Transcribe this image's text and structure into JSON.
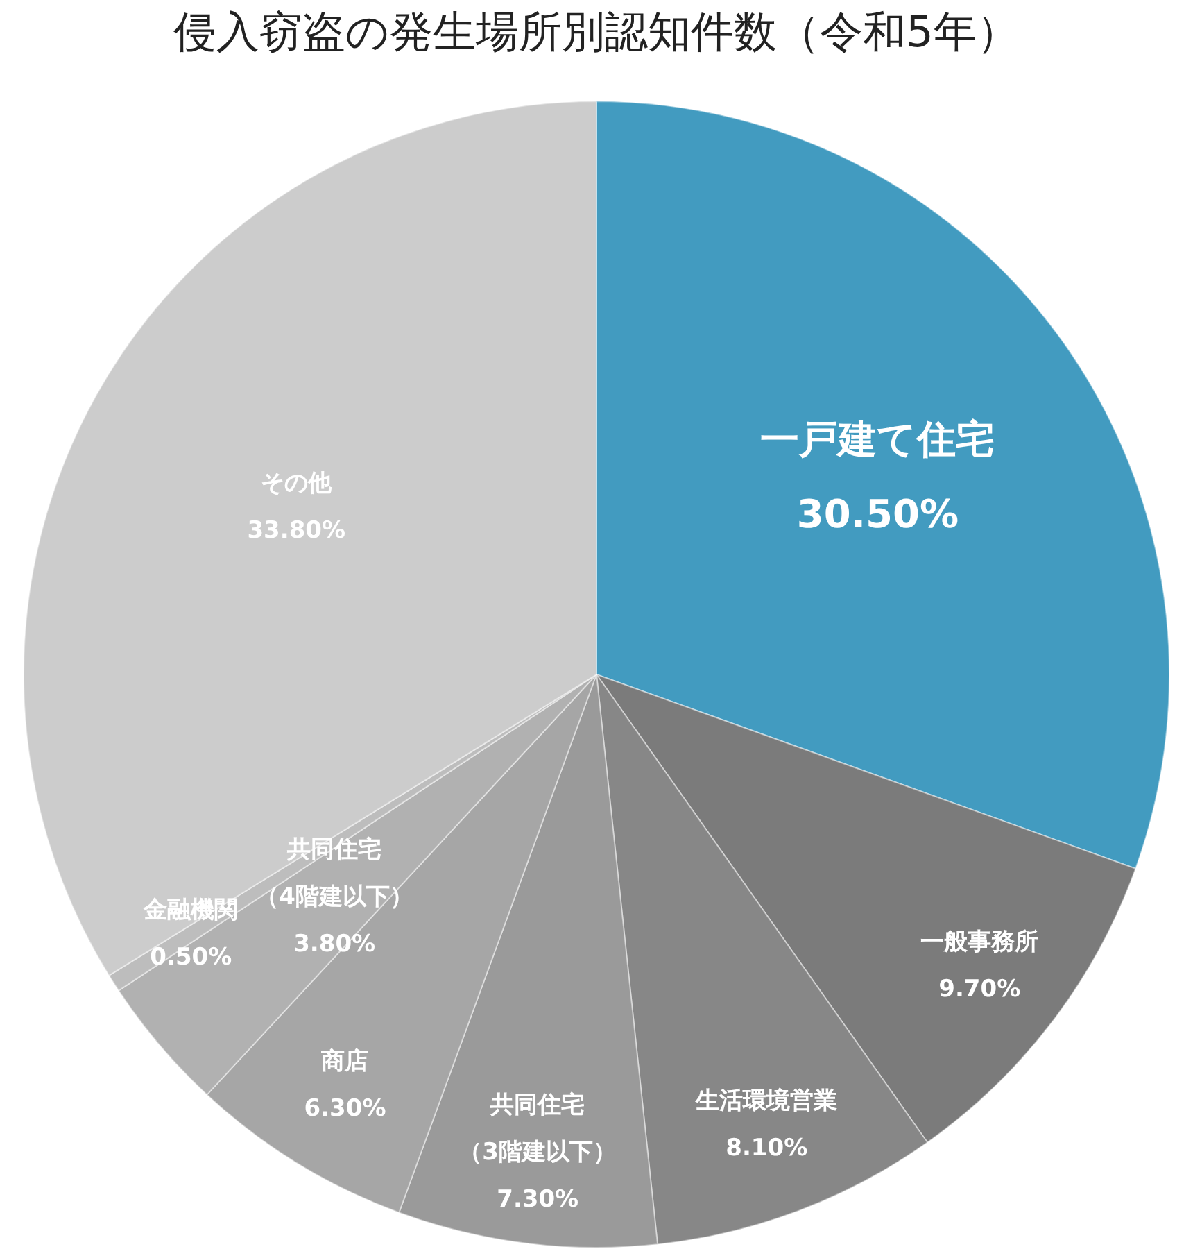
{
  "chart_data": {
    "type": "pie",
    "title": "侵入窃盗の発生場所別認知件数（令和5年）",
    "categories": [
      "一戸建て住宅",
      "一般事務所",
      "生活環境営業",
      "共同住宅（3階建以下）",
      "商店",
      "共同住宅（4階建以下）",
      "金融機関",
      "その他"
    ],
    "values": [
      30.5,
      9.7,
      8.1,
      7.3,
      6.3,
      3.8,
      0.5,
      33.8
    ],
    "value_labels": [
      "30.50%",
      "9.70%",
      "8.10%",
      "7.30%",
      "6.30%",
      "3.80%",
      "0.50%",
      "33.80%"
    ],
    "colors": [
      "#429bc0",
      "#7b7b7b",
      "#878787",
      "#9a9a9a",
      "#a6a6a6",
      "#b1b1b1",
      "#bdbdbd",
      "#cccccc"
    ]
  }
}
